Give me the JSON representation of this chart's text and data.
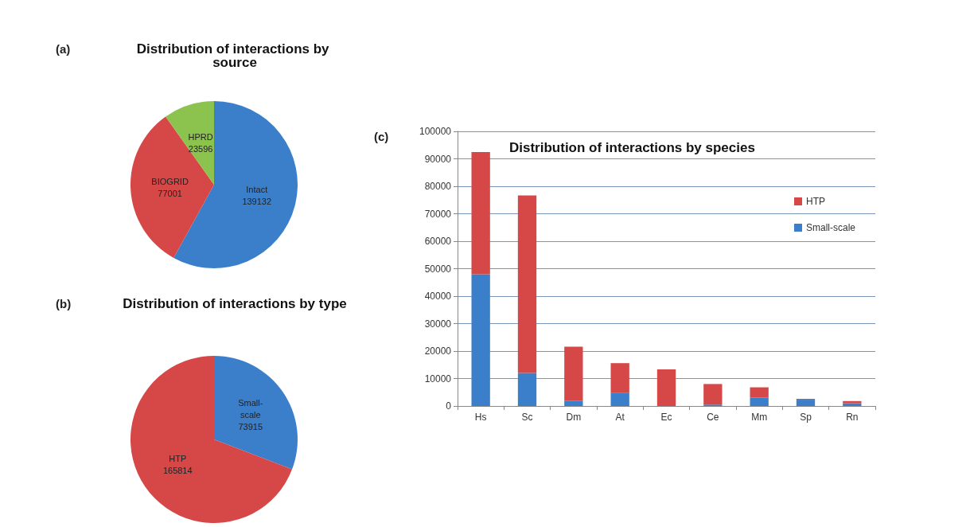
{
  "chart_data": [
    {
      "type": "pie",
      "title": "Distribution of interactions by source",
      "annotations": [
        "(a)"
      ],
      "categories": [
        "Intact",
        "BIOGRID",
        "HPRD"
      ],
      "values": [
        139132,
        77001,
        23596
      ],
      "colors": [
        "#3b7fcb",
        "#d64848",
        "#8cc34f"
      ],
      "data_labels": true
    },
    {
      "type": "pie",
      "title": "Distribution of interactions by type",
      "annotations": [
        "(b)"
      ],
      "categories": [
        "Small-scale",
        "HTP"
      ],
      "values": [
        73915,
        165814
      ],
      "colors": [
        "#3b7fcb",
        "#d64848"
      ],
      "data_labels": true
    },
    {
      "type": "bar",
      "title": "Distribution of interactions by species",
      "annotations": [
        "(c)"
      ],
      "categories": [
        "Hs",
        "Sc",
        "Dm",
        "At",
        "Ec",
        "Ce",
        "Mm",
        "Sp",
        "Rn"
      ],
      "stacked": true,
      "series": [
        {
          "name": "Small-scale",
          "color": "#3b7fcb",
          "values": [
            48000,
            12000,
            1800,
            4700,
            300,
            500,
            3000,
            2300,
            1000
          ]
        },
        {
          "name": "HTP",
          "color": "#d64848",
          "values": [
            44500,
            64700,
            19800,
            10900,
            13000,
            7500,
            3800,
            300,
            800
          ]
        }
      ],
      "ylim": [
        0,
        100000
      ],
      "yticks": [
        0,
        10000,
        20000,
        30000,
        40000,
        50000,
        60000,
        70000,
        80000,
        90000,
        100000
      ],
      "grid": "y",
      "legend": "top right"
    }
  ]
}
